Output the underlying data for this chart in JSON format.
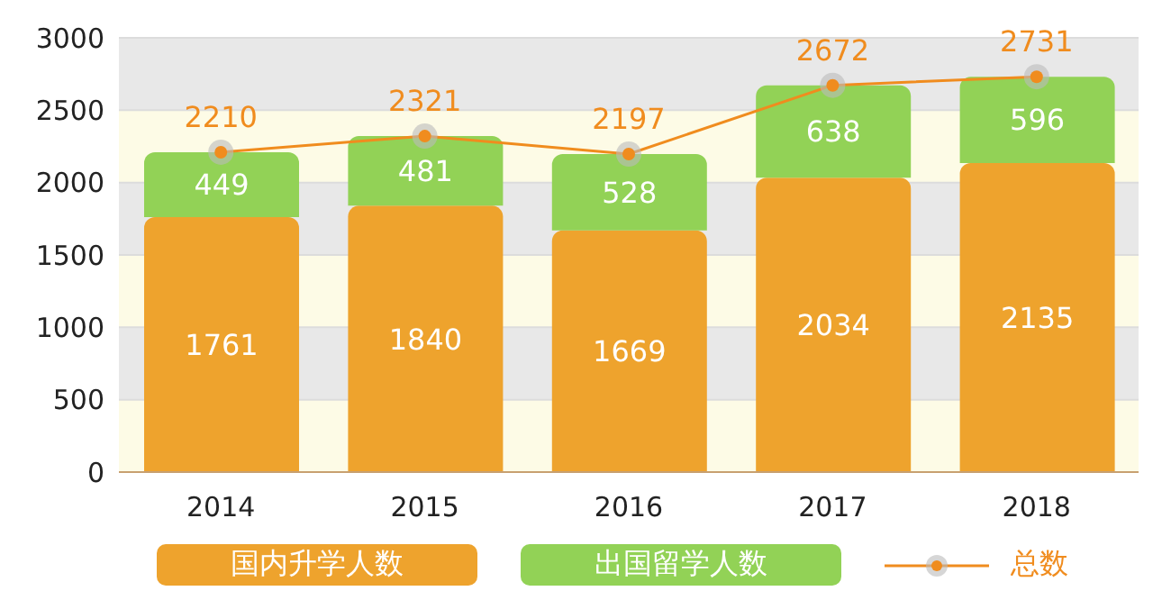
{
  "chart_data": {
    "type": "bar",
    "stacked": true,
    "categories": [
      "2014",
      "2015",
      "2016",
      "2017",
      "2018"
    ],
    "series": [
      {
        "name": "国内升学人数",
        "color": "#eea32d",
        "values": [
          1761,
          1840,
          1669,
          2034,
          2135
        ]
      },
      {
        "name": "出国留学人数",
        "color": "#92d256",
        "values": [
          449,
          481,
          528,
          638,
          596
        ]
      },
      {
        "name": "总数",
        "type": "line",
        "color": "#f08c1e",
        "values": [
          2210,
          2321,
          2197,
          2672,
          2731
        ]
      }
    ],
    "ylim": [
      0,
      3000
    ],
    "yticks": [
      0,
      500,
      1000,
      1500,
      2000,
      2500,
      3000
    ],
    "grid": "y",
    "data_labels": true,
    "legend": "bottom",
    "marker": "circle"
  }
}
